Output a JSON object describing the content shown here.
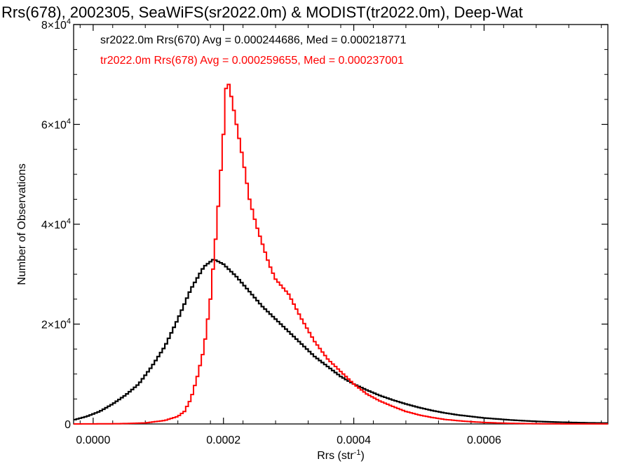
{
  "chart_data": {
    "type": "histogram-step",
    "title": "Rrs(678), 2002305, SeaWiFS(sr2022.0m) & MODIST(tr2022.0m), Deep-Wat",
    "xlabel": "Rrs (str",
    "xlabel_sup": "-1",
    "xlabel_close": ")",
    "ylabel": "Number of Observations",
    "xlim": [
      -3e-05,
      0.00079
    ],
    "ylim": [
      0,
      80000
    ],
    "x_ticks": [
      {
        "value": 0.0,
        "label": "0.0000"
      },
      {
        "value": 0.0002,
        "label": "0.0002"
      },
      {
        "value": 0.0004,
        "label": "0.0004"
      },
      {
        "value": 0.0006,
        "label": "0.0006"
      }
    ],
    "y_ticks": [
      {
        "value": 0,
        "label": "0",
        "sup": ""
      },
      {
        "value": 20000,
        "label": "2×10",
        "sup": "4"
      },
      {
        "value": 40000,
        "label": "4×10",
        "sup": "4"
      },
      {
        "value": 60000,
        "label": "6×10",
        "sup": "4"
      },
      {
        "value": 80000,
        "label": "8×10",
        "sup": "4"
      }
    ],
    "legend": [
      {
        "text": "sr2022.0m Rrs(670) Avg = 0.000244686, Med = 0.000218771",
        "color": "#000000"
      },
      {
        "text": "tr2022.0m Rrs(678) Avg = 0.000259655, Med = 0.000237001",
        "color": "#ff0000"
      }
    ],
    "series": [
      {
        "color": "#000000",
        "points": [
          [
            -3e-05,
            800
          ],
          [
            -1e-05,
            1500
          ],
          [
            1e-05,
            2500
          ],
          [
            3e-05,
            4000
          ],
          [
            5e-05,
            5800
          ],
          [
            7e-05,
            8000
          ],
          [
            9e-05,
            11500
          ],
          [
            0.00011,
            15500
          ],
          [
            0.00013,
            21000
          ],
          [
            0.00015,
            27000
          ],
          [
            0.00017,
            31500
          ],
          [
            0.000185,
            33000
          ],
          [
            0.0002,
            32000
          ],
          [
            0.00022,
            29500
          ],
          [
            0.00024,
            26500
          ],
          [
            0.00026,
            23500
          ],
          [
            0.00028,
            21000
          ],
          [
            0.0003,
            18500
          ],
          [
            0.00032,
            16000
          ],
          [
            0.00034,
            13500
          ],
          [
            0.00036,
            11500
          ],
          [
            0.00038,
            9500
          ],
          [
            0.0004,
            8000
          ],
          [
            0.00042,
            6800
          ],
          [
            0.00044,
            5700
          ],
          [
            0.00046,
            4800
          ],
          [
            0.00048,
            4000
          ],
          [
            0.0005,
            3300
          ],
          [
            0.00052,
            2700
          ],
          [
            0.00054,
            2200
          ],
          [
            0.00056,
            1800
          ],
          [
            0.00058,
            1500
          ],
          [
            0.0006,
            1200
          ],
          [
            0.00062,
            1000
          ],
          [
            0.00064,
            800
          ],
          [
            0.00066,
            650
          ],
          [
            0.00068,
            520
          ],
          [
            0.0007,
            420
          ],
          [
            0.00072,
            340
          ],
          [
            0.00074,
            280
          ],
          [
            0.00076,
            220
          ],
          [
            0.00079,
            170
          ]
        ]
      },
      {
        "color": "#ff0000",
        "points": [
          [
            -3e-05,
            0
          ],
          [
            4e-05,
            50
          ],
          [
            8e-05,
            200
          ],
          [
            0.00011,
            700
          ],
          [
            0.00013,
            1500
          ],
          [
            0.00014,
            2500
          ],
          [
            0.00015,
            5000
          ],
          [
            0.00016,
            9500
          ],
          [
            0.00017,
            15000
          ],
          [
            0.00018,
            25000
          ],
          [
            0.00019,
            40000
          ],
          [
            0.0002,
            58000
          ],
          [
            0.000205,
            69500
          ],
          [
            0.00021,
            67000
          ],
          [
            0.00022,
            60000
          ],
          [
            0.00023,
            53000
          ],
          [
            0.00024,
            45000
          ],
          [
            0.00025,
            40000
          ],
          [
            0.00026,
            36000
          ],
          [
            0.00027,
            32000
          ],
          [
            0.00028,
            29000
          ],
          [
            0.0003,
            26000
          ],
          [
            0.00032,
            21000
          ],
          [
            0.00034,
            16500
          ],
          [
            0.00036,
            13000
          ],
          [
            0.00038,
            10500
          ],
          [
            0.0004,
            8000
          ],
          [
            0.00042,
            6000
          ],
          [
            0.00044,
            4600
          ],
          [
            0.00046,
            3500
          ],
          [
            0.00048,
            2500
          ],
          [
            0.0005,
            1800
          ],
          [
            0.00052,
            1300
          ],
          [
            0.00054,
            900
          ],
          [
            0.00056,
            650
          ],
          [
            0.00058,
            450
          ],
          [
            0.0006,
            300
          ],
          [
            0.00062,
            200
          ],
          [
            0.00064,
            130
          ],
          [
            0.00066,
            80
          ],
          [
            0.00068,
            50
          ],
          [
            0.0007,
            30
          ],
          [
            0.00079,
            10
          ]
        ]
      }
    ]
  }
}
